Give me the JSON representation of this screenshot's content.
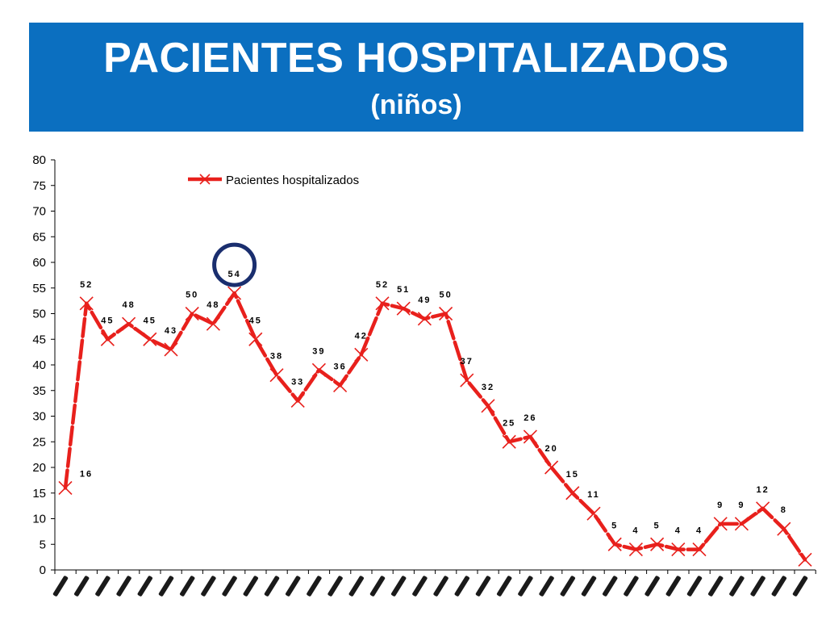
{
  "header": {
    "title": "PACIENTES HOSPITALIZADOS",
    "subtitle": "(niños)"
  },
  "chart_data": {
    "type": "line",
    "title": "",
    "xlabel": "",
    "ylabel": "",
    "ylim": [
      0,
      80
    ],
    "yticks": [
      0,
      5,
      10,
      15,
      20,
      25,
      30,
      35,
      40,
      45,
      50,
      55,
      60,
      65,
      70,
      75,
      80
    ],
    "grid": false,
    "legend_position": "top",
    "series": [
      {
        "name": "Pacientes hospitalizados",
        "color": "#e8201c",
        "marker_color": "#e8201c",
        "values": [
          16,
          52,
          45,
          48,
          45,
          43,
          50,
          48,
          54,
          45,
          38,
          33,
          39,
          36,
          42,
          52,
          51,
          49,
          50,
          37,
          32,
          25,
          26,
          20,
          15,
          11,
          5,
          4,
          5,
          4,
          4,
          9,
          9,
          12,
          8,
          2
        ],
        "data_labels": [
          "16",
          "52",
          "45",
          "48",
          "45",
          "43",
          "50",
          "48",
          "54",
          "45",
          "38",
          "33",
          "39",
          "36",
          "42",
          "52",
          "51",
          "49",
          "50",
          "37",
          "32",
          "25",
          "26",
          "20",
          "15",
          "11",
          "5",
          "4",
          "5",
          "4",
          "4",
          "9",
          "9",
          "12",
          "8",
          ""
        ]
      }
    ],
    "highlight": {
      "index": 8,
      "shape": "circle",
      "color": "#1a2e6e"
    }
  }
}
